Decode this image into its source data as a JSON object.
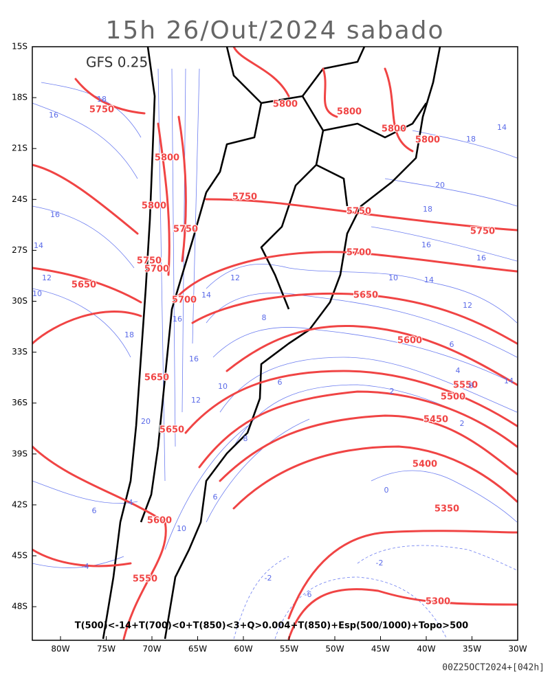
{
  "title": "15h 26/Out/2024 sabado",
  "model": "GFS 0.25",
  "lat_labels": [
    "15S",
    "18S",
    "21S",
    "24S",
    "27S",
    "30S",
    "33S",
    "36S",
    "39S",
    "42S",
    "45S",
    "48S"
  ],
  "lon_labels": [
    "80W",
    "75W",
    "70W",
    "65W",
    "60W",
    "55W",
    "50W",
    "45W",
    "40W",
    "35W",
    "30W"
  ],
  "thickness_labels": [
    5750,
    5800,
    5800,
    5800,
    5800,
    5800,
    5750,
    5800,
    5750,
    5750,
    5750,
    5700,
    5750,
    5700,
    5650,
    5700,
    5650,
    5600,
    5650,
    5550,
    5500,
    5450,
    5650,
    5400,
    5350,
    5600,
    5550,
    5300
  ],
  "temperature_labels": [
    18,
    16,
    16,
    14,
    12,
    10,
    14,
    18,
    20,
    18,
    16,
    16,
    14,
    12,
    10,
    8,
    12,
    14,
    16,
    10,
    12,
    8,
    6,
    6,
    4,
    2,
    14,
    8,
    2,
    0,
    -2,
    -6,
    -2,
    6,
    4,
    6,
    10,
    -4,
    18,
    16,
    20
  ],
  "legend": "T(500)<-14+T(700)<0+T(850)<3+Q>0.004+T(850)+Esp(500/1000)+Topo>500",
  "timestamp": "00Z25OCT2024+[042h]"
}
